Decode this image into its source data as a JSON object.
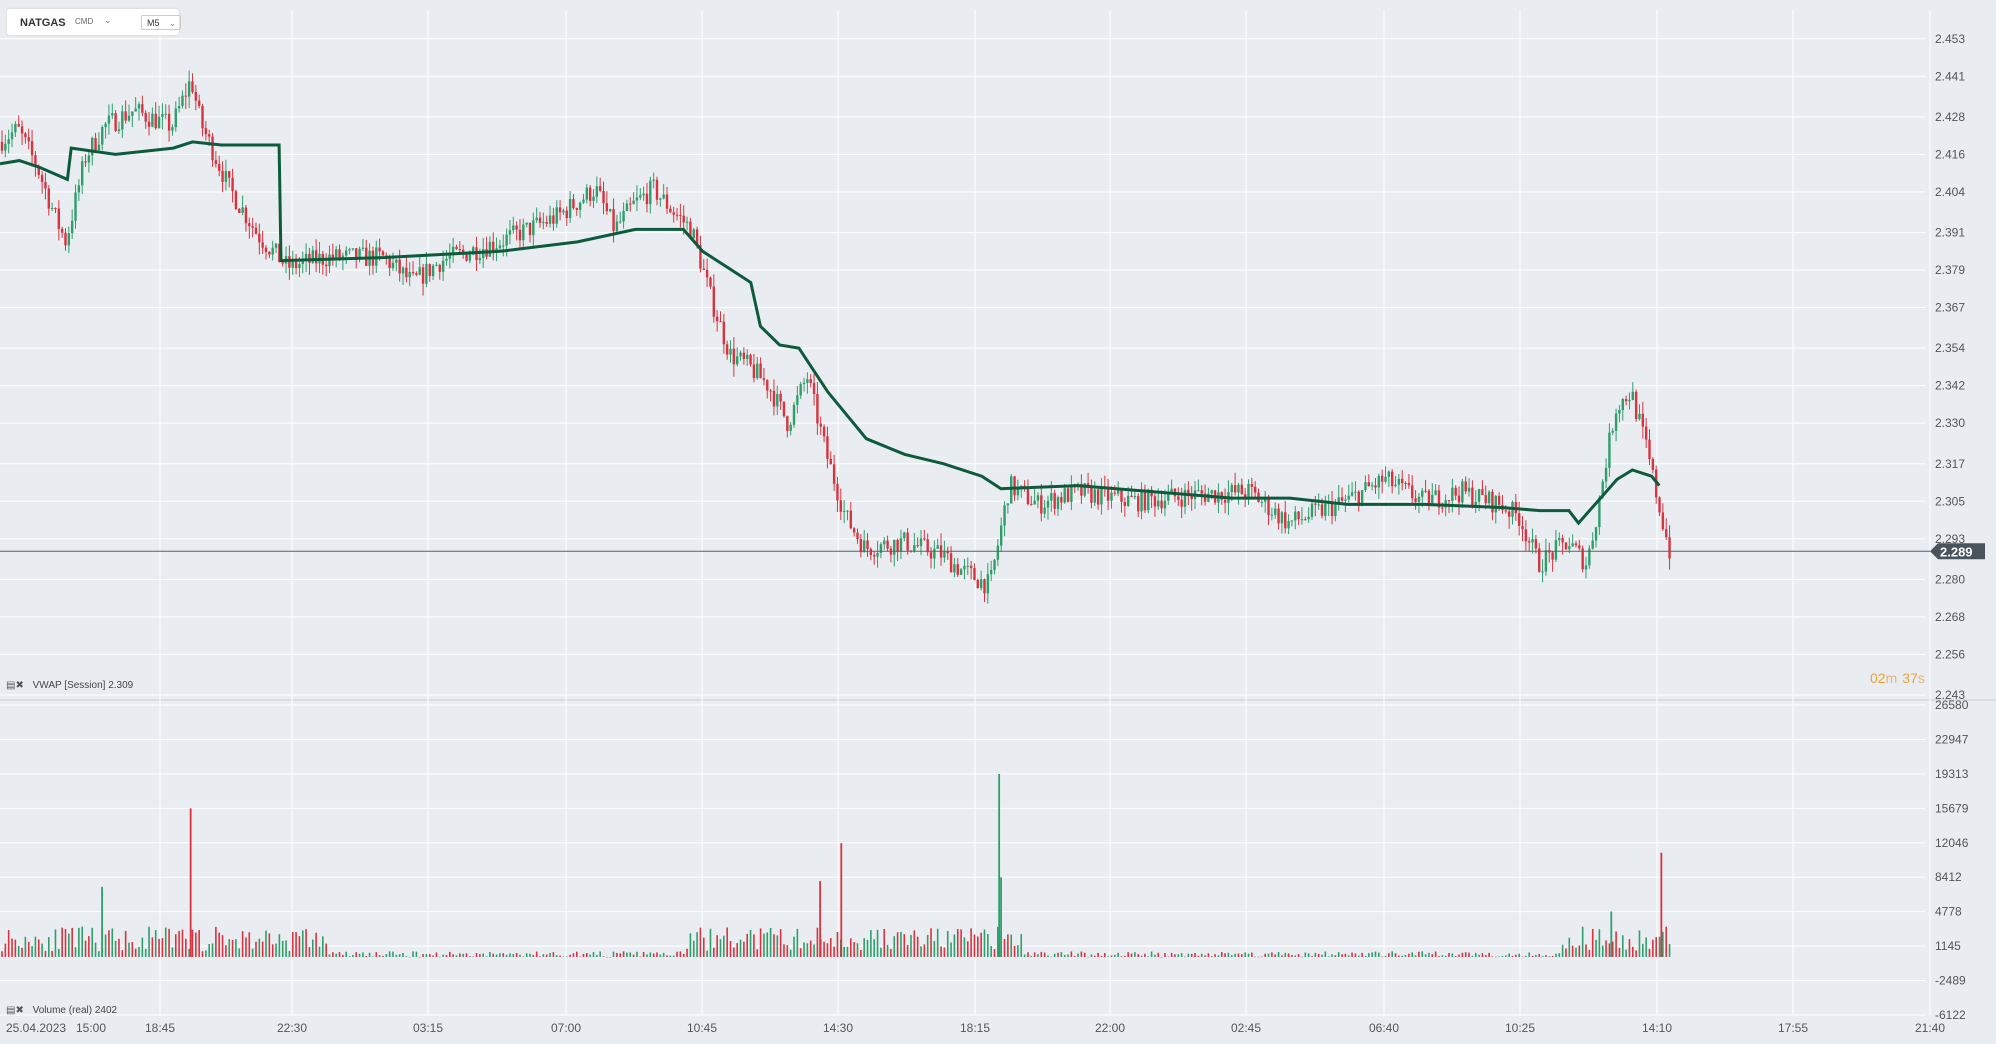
{
  "header": {
    "symbol": "NATGAS",
    "exchange": "CMD",
    "timeframe": "M5"
  },
  "indicators": {
    "vwap_label": "VWAP",
    "vwap_mode": "[Session]",
    "vwap_value": "2.309",
    "volume_label": "Volume",
    "volume_mode": "(real)",
    "volume_value": "2402"
  },
  "countdown": {
    "minutes": "02",
    "seconds": "37",
    "m_unit": "m",
    "s_unit": "s"
  },
  "colors": {
    "background": "#e9edf1",
    "grid": "#ffffff",
    "up": "#2e9e6b",
    "down": "#d8333f",
    "vwap": "#0d5b3c",
    "price_line": "#5a6066",
    "price_tag": "#4a545c",
    "axis_text": "#555555"
  },
  "chart_data": [
    {
      "type": "candlestick",
      "title": "",
      "y_ticks": [
        "2.453",
        "2.441",
        "2.428",
        "2.416",
        "2.404",
        "2.391",
        "2.379",
        "2.367",
        "2.354",
        "2.342",
        "2.330",
        "2.317",
        "2.305",
        "2.293",
        "2.280",
        "2.268",
        "2.256",
        "2.243"
      ],
      "ylim": [
        2.243,
        2.459
      ],
      "current_price": "2.289",
      "x_ticks": [
        "25.04.2023",
        "15:00",
        "18:45",
        "22:30",
        "03:15",
        "07:00",
        "10:45",
        "14:30",
        "18:15",
        "22:00",
        "02:45",
        "06:40",
        "10:25",
        "14:10",
        "17:55",
        "21:40"
      ],
      "grid": true,
      "price_path": [
        [
          0,
          2.42
        ],
        [
          0.01,
          2.424
        ],
        [
          0.02,
          2.412
        ],
        [
          0.03,
          2.395
        ],
        [
          0.035,
          2.388
        ],
        [
          0.045,
          2.415
        ],
        [
          0.055,
          2.425
        ],
        [
          0.07,
          2.43
        ],
        [
          0.09,
          2.425
        ],
        [
          0.1,
          2.44
        ],
        [
          0.105,
          2.426
        ],
        [
          0.12,
          2.405
        ],
        [
          0.135,
          2.39
        ],
        [
          0.15,
          2.38
        ],
        [
          0.17,
          2.383
        ],
        [
          0.2,
          2.383
        ],
        [
          0.215,
          2.375
        ],
        [
          0.23,
          2.382
        ],
        [
          0.26,
          2.388
        ],
        [
          0.29,
          2.396
        ],
        [
          0.31,
          2.405
        ],
        [
          0.32,
          2.392
        ],
        [
          0.33,
          2.4
        ],
        [
          0.34,
          2.405
        ],
        [
          0.35,
          2.398
        ],
        [
          0.36,
          2.392
        ],
        [
          0.37,
          2.37
        ],
        [
          0.38,
          2.352
        ],
        [
          0.39,
          2.348
        ],
        [
          0.4,
          2.342
        ],
        [
          0.41,
          2.33
        ],
        [
          0.42,
          2.345
        ],
        [
          0.43,
          2.32
        ],
        [
          0.44,
          2.3
        ],
        [
          0.45,
          2.29
        ],
        [
          0.47,
          2.292
        ],
        [
          0.49,
          2.288
        ],
        [
          0.5,
          2.283
        ],
        [
          0.515,
          2.278
        ],
        [
          0.525,
          2.31
        ],
        [
          0.54,
          2.304
        ],
        [
          0.56,
          2.308
        ],
        [
          0.59,
          2.305
        ],
        [
          0.62,
          2.307
        ],
        [
          0.65,
          2.308
        ],
        [
          0.67,
          2.298
        ],
        [
          0.7,
          2.305
        ],
        [
          0.72,
          2.312
        ],
        [
          0.74,
          2.305
        ],
        [
          0.76,
          2.308
        ],
        [
          0.78,
          2.304
        ],
        [
          0.79,
          2.3
        ],
        [
          0.8,
          2.285
        ],
        [
          0.815,
          2.292
        ],
        [
          0.825,
          2.285
        ],
        [
          0.83,
          2.3
        ],
        [
          0.835,
          2.318
        ],
        [
          0.84,
          2.335
        ],
        [
          0.848,
          2.34
        ],
        [
          0.856,
          2.322
        ],
        [
          0.862,
          2.305
        ],
        [
          0.868,
          2.289
        ]
      ],
      "vwap_path": [
        [
          0,
          2.413
        ],
        [
          0.01,
          2.414
        ],
        [
          0.02,
          2.412
        ],
        [
          0.035,
          2.408
        ],
        [
          0.037,
          2.418
        ],
        [
          0.06,
          2.416
        ],
        [
          0.09,
          2.418
        ],
        [
          0.1,
          2.42
        ],
        [
          0.115,
          2.419
        ],
        [
          0.145,
          2.419
        ],
        [
          0.146,
          2.382
        ],
        [
          0.2,
          2.383
        ],
        [
          0.26,
          2.385
        ],
        [
          0.3,
          2.388
        ],
        [
          0.33,
          2.392
        ],
        [
          0.355,
          2.392
        ],
        [
          0.365,
          2.385
        ],
        [
          0.38,
          2.379
        ],
        [
          0.39,
          2.375
        ],
        [
          0.395,
          2.361
        ],
        [
          0.405,
          2.355
        ],
        [
          0.415,
          2.354
        ],
        [
          0.43,
          2.34
        ],
        [
          0.45,
          2.325
        ],
        [
          0.47,
          2.32
        ],
        [
          0.49,
          2.317
        ],
        [
          0.51,
          2.313
        ],
        [
          0.52,
          2.309
        ],
        [
          0.56,
          2.31
        ],
        [
          0.6,
          2.308
        ],
        [
          0.64,
          2.306
        ],
        [
          0.67,
          2.306
        ],
        [
          0.7,
          2.304
        ],
        [
          0.74,
          2.304
        ],
        [
          0.78,
          2.303
        ],
        [
          0.8,
          2.302
        ],
        [
          0.815,
          2.302
        ],
        [
          0.82,
          2.298
        ],
        [
          0.83,
          2.305
        ],
        [
          0.84,
          2.312
        ],
        [
          0.848,
          2.315
        ],
        [
          0.858,
          2.313
        ],
        [
          0.862,
          2.31
        ]
      ]
    },
    {
      "type": "bar",
      "title": "",
      "y_ticks": [
        "26580",
        "22947",
        "19313",
        "15679",
        "12046",
        "8412",
        "4778",
        "1145",
        "-2489",
        "-6122"
      ],
      "ylim": [
        -6122,
        26580
      ],
      "volume_spikes": [
        {
          "x": 0.098,
          "value": 15679,
          "dir": "down"
        },
        {
          "x": 0.052,
          "value": 7400,
          "dir": "up"
        },
        {
          "x": 0.436,
          "value": 12000,
          "dir": "down"
        },
        {
          "x": 0.425,
          "value": 8000,
          "dir": "down"
        },
        {
          "x": 0.518,
          "value": 19300,
          "dir": "up"
        },
        {
          "x": 0.519,
          "value": 8400,
          "dir": "up"
        },
        {
          "x": 0.836,
          "value": 4800,
          "dir": "up"
        },
        {
          "x": 0.862,
          "value": 11000,
          "dir": "down"
        }
      ]
    }
  ]
}
